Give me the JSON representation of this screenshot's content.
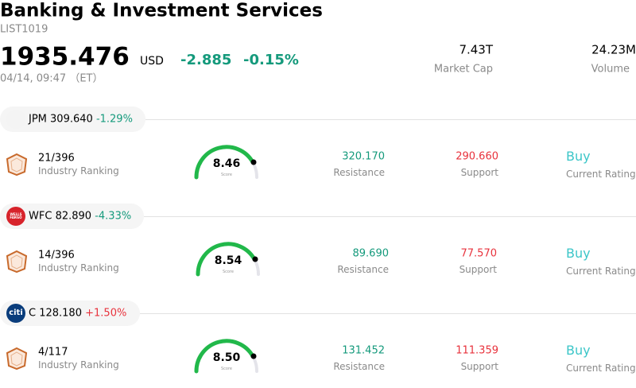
{
  "header": {
    "title": "Banking & Investment Services",
    "code": "LIST1019",
    "price": "1935.476",
    "currency": "USD",
    "change": "-2.885",
    "change_pct": "-0.15%",
    "datetime": "04/14, 09:47 （ET）",
    "market_cap": "7.43T",
    "market_cap_label": "Market Cap",
    "volume": "24.23M",
    "volume_label": "Volume"
  },
  "stocks": [
    {
      "ticker": "JPM",
      "price": "309.640",
      "change": "-1.29%",
      "ranking": "21/396",
      "ranking_label": "Industry Ranking",
      "score": "8.46",
      "score_label": "Score",
      "resistance": "320.170",
      "resistance_label": "Resistance",
      "support": "290.660",
      "support_label": "Support",
      "rating": "Buy",
      "rating_label": "Current Rating"
    },
    {
      "ticker": "WFC",
      "logo_text": "WELLS FARGO",
      "price": "82.890",
      "change": "-4.33%",
      "ranking": "14/396",
      "ranking_label": "Industry Ranking",
      "score": "8.54",
      "score_label": "Score",
      "resistance": "89.690",
      "resistance_label": "Resistance",
      "support": "77.570",
      "support_label": "Support",
      "rating": "Buy",
      "rating_label": "Current Rating"
    },
    {
      "ticker": "C",
      "logo_text": "citi",
      "price": "128.180",
      "change": "+1.50%",
      "ranking": "4/117",
      "ranking_label": "Industry Ranking",
      "score": "8.50",
      "score_label": "Score",
      "resistance": "131.452",
      "resistance_label": "Resistance",
      "support": "111.359",
      "support_label": "Support",
      "rating": "Buy",
      "rating_label": "Current Rating"
    }
  ]
}
